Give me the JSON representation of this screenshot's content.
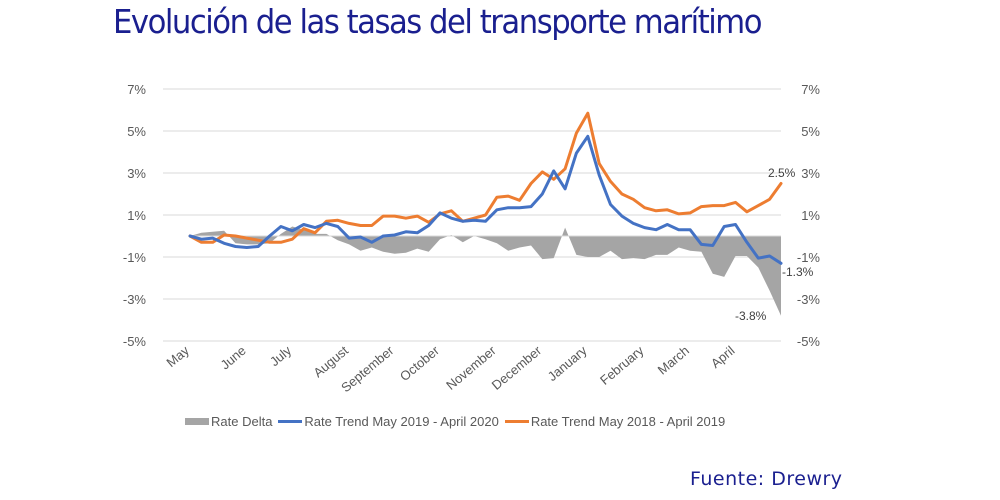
{
  "title": "Evolución de las tasas del transporte marítimo",
  "source": "Fuente:  Drewry",
  "colors": {
    "title": "#1a1f8f",
    "delta": "#a5a5a5",
    "trend_2019_2020": "#4472c4",
    "trend_2018_2019": "#ed7d31",
    "grid": "#d9d9d9"
  },
  "chart_data": {
    "type": "line",
    "title": "Evolución de las tasas del transporte marítimo",
    "xlabel": "",
    "ylabel": "",
    "ylim": [
      -5,
      7
    ],
    "y_ticks": [
      7,
      5,
      3,
      1,
      -1,
      -3,
      -5
    ],
    "y_tick_labels": [
      "7%",
      "5%",
      "3%",
      "1%",
      "-1%",
      "-3%",
      "-5%"
    ],
    "secondary_y_tick_labels": [
      "7%",
      "5%",
      "3%",
      "1%",
      "-1%",
      "-3%",
      "-5%"
    ],
    "grid": true,
    "legend_position": "bottom",
    "x_tick_labels": [
      "May",
      "June",
      "July",
      "August",
      "September",
      "October",
      "November",
      "December",
      "January",
      "February",
      "March",
      "April"
    ],
    "x_tick_index": [
      0,
      5,
      9,
      14,
      18,
      22,
      27,
      31,
      35,
      40,
      44,
      48
    ],
    "n_points": 53,
    "series": [
      {
        "name": "Rate Delta",
        "type": "area",
        "values": [
          0,
          0.15,
          0.2,
          0.25,
          -0.35,
          -0.4,
          -0.4,
          -0.35,
          0.1,
          0.45,
          0.3,
          0.1,
          0.1,
          -0.2,
          -0.4,
          -0.7,
          -0.55,
          -0.75,
          -0.85,
          -0.8,
          -0.6,
          -0.75,
          -0.15,
          0.05,
          -0.3,
          0.0,
          -0.15,
          -0.35,
          -0.7,
          -0.55,
          -0.45,
          -1.1,
          -1.05,
          0.4,
          -0.9,
          -1.0,
          -1.0,
          -0.7,
          -1.1,
          -1.05,
          -1.1,
          -0.9,
          -0.9,
          -0.55,
          -0.7,
          -0.75,
          -1.8,
          -1.95,
          -0.95,
          -0.95,
          -1.5,
          -2.6,
          -3.8
        ]
      },
      {
        "name": "Rate Trend May 2019 - April 2020",
        "type": "line",
        "values": [
          0,
          -0.15,
          -0.1,
          -0.35,
          -0.5,
          -0.55,
          -0.5,
          0.0,
          0.45,
          0.25,
          0.55,
          0.4,
          0.6,
          0.45,
          -0.1,
          -0.05,
          -0.3,
          0.0,
          0.05,
          0.2,
          0.15,
          0.5,
          1.1,
          0.85,
          0.7,
          0.75,
          0.7,
          1.25,
          1.35,
          1.35,
          1.4,
          2.0,
          3.1,
          2.25,
          3.95,
          4.75,
          2.9,
          1.5,
          0.95,
          0.6,
          0.4,
          0.3,
          0.55,
          0.3,
          0.3,
          -0.4,
          -0.45,
          0.45,
          0.55,
          -0.3,
          -1.05,
          -0.95,
          -1.3
        ]
      },
      {
        "name": "Rate Trend May 2018 - April 2019",
        "type": "line",
        "values": [
          0,
          -0.3,
          -0.3,
          0.05,
          0.0,
          -0.1,
          -0.2,
          -0.3,
          -0.3,
          -0.15,
          0.35,
          0.15,
          0.7,
          0.75,
          0.6,
          0.5,
          0.5,
          0.95,
          0.95,
          0.85,
          0.95,
          0.65,
          1.05,
          1.2,
          0.7,
          0.85,
          1.0,
          1.85,
          1.9,
          1.7,
          2.5,
          3.05,
          2.7,
          3.2,
          4.9,
          5.85,
          3.45,
          2.6,
          2.0,
          1.75,
          1.35,
          1.2,
          1.25,
          1.05,
          1.1,
          1.4,
          1.45,
          1.45,
          1.6,
          1.15,
          1.45,
          1.75,
          2.5
        ]
      }
    ],
    "annotations": [
      {
        "text": "2.5%",
        "series": "Rate Trend May 2018 - April 2019",
        "index": 52
      },
      {
        "text": "-1.3%",
        "series": "Rate Trend May 2019 - April 2020",
        "index": 52
      },
      {
        "text": "-3.8%",
        "series": "Rate Delta",
        "index": 52
      }
    ]
  },
  "legend": [
    {
      "label": "Rate Delta",
      "kind": "area"
    },
    {
      "label": "Rate Trend May 2019 - April 2020",
      "kind": "line"
    },
    {
      "label": "Rate Trend May 2018 - April 2019",
      "kind": "line"
    }
  ]
}
